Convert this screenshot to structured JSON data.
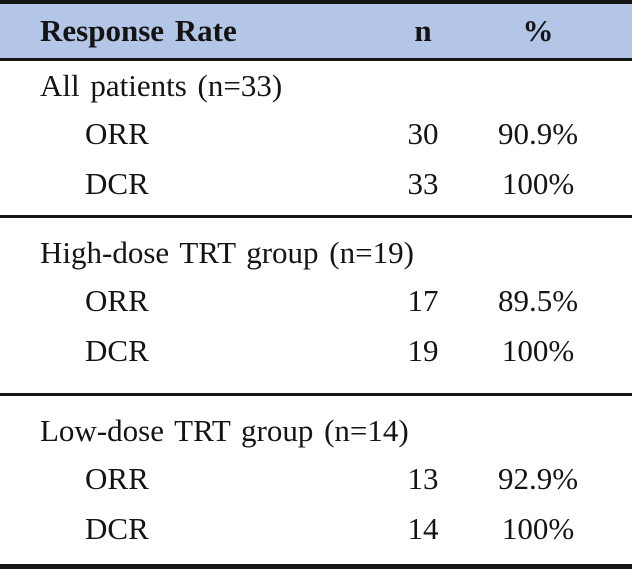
{
  "table": {
    "header": {
      "col1": "Response Rate",
      "col2": "n",
      "col3": "%"
    },
    "sections": [
      {
        "group": "All patients (n=33)",
        "rows": [
          {
            "label": "ORR",
            "n": "30",
            "pct": "90.9%"
          },
          {
            "label": "DCR",
            "n": "33",
            "pct": "100%"
          }
        ]
      },
      {
        "group": "High-dose TRT group (n=19)",
        "rows": [
          {
            "label": "ORR",
            "n": "17",
            "pct": "89.5%"
          },
          {
            "label": "DCR",
            "n": "19",
            "pct": "100%"
          }
        ]
      },
      {
        "group": "Low-dose TRT group (n=14)",
        "rows": [
          {
            "label": "ORR",
            "n": "13",
            "pct": "92.9%"
          },
          {
            "label": "DCR",
            "n": "14",
            "pct": "100%"
          }
        ]
      }
    ],
    "colors": {
      "header_bg": "#b4c6e7",
      "rule": "#161616"
    }
  }
}
